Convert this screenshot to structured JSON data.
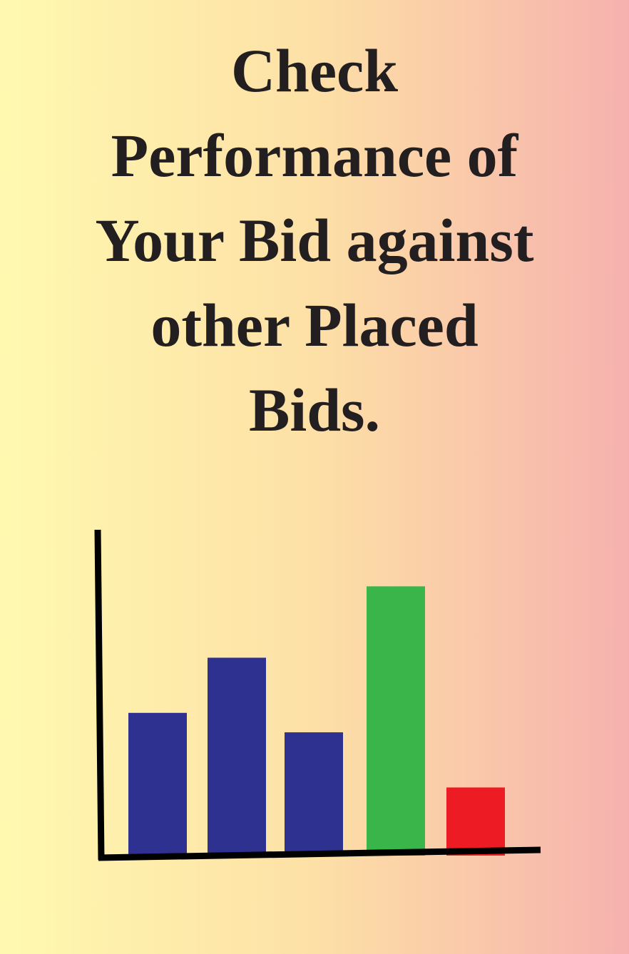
{
  "chart_data": {
    "type": "bar",
    "title": [
      "Check",
      "Performance of",
      "Your Bid against",
      "other Placed",
      "Bids."
    ],
    "categories": [
      null,
      null,
      null,
      null,
      null
    ],
    "values": [
      44,
      61,
      38,
      83,
      21
    ],
    "colors": [
      "#2e3190",
      "#2e3190",
      "#2e3190",
      "#39b54a",
      "#ed1c24"
    ],
    "ylim": [
      0,
      100
    ]
  }
}
